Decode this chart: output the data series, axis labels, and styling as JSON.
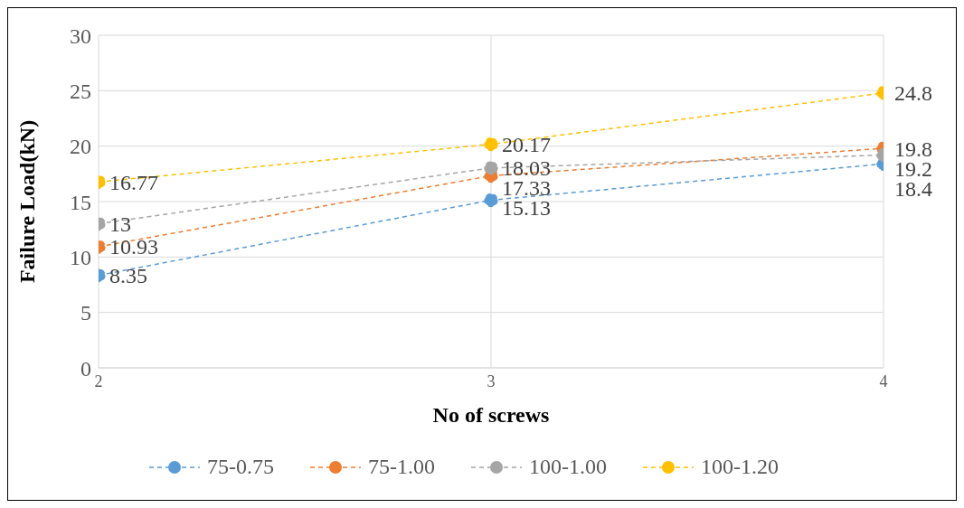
{
  "chart_data": {
    "type": "line",
    "xlabel": "No of screws",
    "ylabel": "Failure Load(kN)",
    "x": [
      2,
      3,
      4
    ],
    "xlim": [
      2,
      4
    ],
    "xticks": [
      2,
      3,
      4
    ],
    "ylim": [
      0,
      30
    ],
    "yticks": [
      0,
      5,
      10,
      15,
      20,
      25,
      30
    ],
    "grid": true,
    "legend": "bottom",
    "marker": "circle",
    "line_style": "dashed",
    "data_labels": true,
    "series": [
      {
        "name": "75-0.75",
        "color": "#5b9bd5",
        "values": [
          8.35,
          15.13,
          18.4
        ]
      },
      {
        "name": "75-1.00",
        "color": "#ed7d31",
        "values": [
          10.93,
          17.33,
          19.8
        ]
      },
      {
        "name": "100-1.00",
        "color": "#a5a5a5",
        "values": [
          13,
          18.03,
          19.2
        ]
      },
      {
        "name": "100-1.20",
        "color": "#ffc000",
        "values": [
          16.77,
          20.17,
          24.8
        ]
      }
    ]
  }
}
